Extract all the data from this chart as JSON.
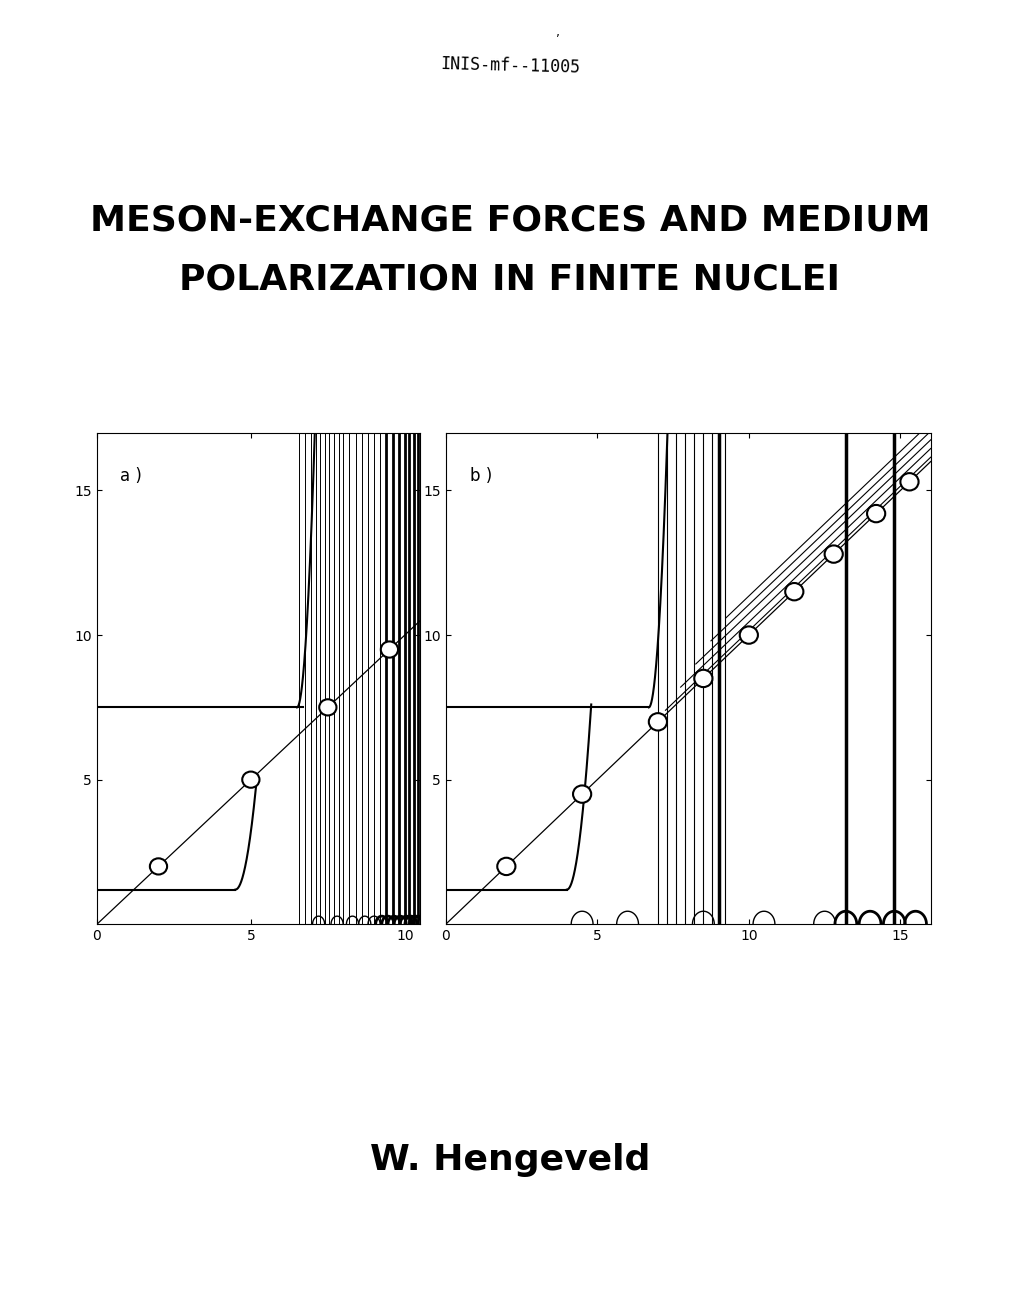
{
  "background_color": "#ffffff",
  "identifier_text": "INIS-mf--11005",
  "identifier_fontsize": 12,
  "title_line1": "MESON-EXCHANGE FORCES AND MEDIUM",
  "title_line2": "POLARIZATION IN FINITE NUCLEI",
  "title_fontsize": 26,
  "title_fontweight": "bold",
  "author_text": "W. Hengeveld",
  "author_fontsize": 26,
  "author_fontweight": "bold",
  "plot_label_a": "a )",
  "plot_label_b": "b )",
  "panel_a_xticks": [
    0,
    5,
    10
  ],
  "panel_b_xticks": [
    0,
    5,
    10,
    15
  ],
  "yticks": [
    5,
    10,
    15
  ]
}
